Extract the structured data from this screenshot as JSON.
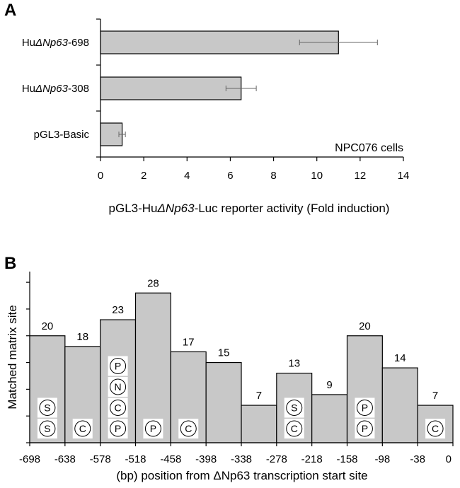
{
  "chart_data": [
    {
      "panel": "A",
      "type": "bar",
      "orientation": "horizontal",
      "categories": [
        {
          "prefix": "Hu",
          "italic": "ΔNp63",
          "suffix": "-698"
        },
        {
          "prefix": "Hu",
          "italic": "ΔNp63",
          "suffix": "-308"
        },
        {
          "prefix": "",
          "italic": "",
          "suffix": "pGL3-Basic"
        }
      ],
      "values": [
        11.0,
        6.5,
        1.0
      ],
      "error": [
        1.8,
        0.7,
        0.15
      ],
      "annotation": "NPC076 cells",
      "xlabel": {
        "prefix": "pGL3-Hu",
        "italic": "ΔNp63",
        "suffix": "-Luc reporter activity (Fold induction)"
      },
      "xlim": [
        0,
        14
      ],
      "xticks": [
        "0",
        "2",
        "4",
        "6",
        "8",
        "10",
        "12",
        "14"
      ]
    },
    {
      "panel": "B",
      "type": "bar",
      "values": [
        20,
        18,
        23,
        28,
        17,
        15,
        7,
        13,
        9,
        20,
        14,
        7
      ],
      "value_labels": [
        "20",
        "18",
        "23",
        "28",
        "17",
        "15",
        "7",
        "13",
        "9",
        "20",
        "14",
        "7"
      ],
      "bin_edges": [
        "-698",
        "-638",
        "-578",
        "-518",
        "-458",
        "-398",
        "-338",
        "-278",
        "-218",
        "-158",
        "-98",
        "-38",
        "0"
      ],
      "site_badges": [
        [
          "S",
          "S"
        ],
        [
          "C"
        ],
        [
          "P",
          "C",
          "N",
          "P"
        ],
        [
          "P"
        ],
        [
          "C"
        ],
        [],
        [],
        [
          "C",
          "S"
        ],
        [],
        [
          "P",
          "P"
        ],
        [],
        [
          "C"
        ]
      ],
      "ylabel": "Matched matrix site",
      "xlabel": "(bp) position from ΔNp63 transcription start site",
      "ylim": [
        0,
        32
      ]
    }
  ]
}
